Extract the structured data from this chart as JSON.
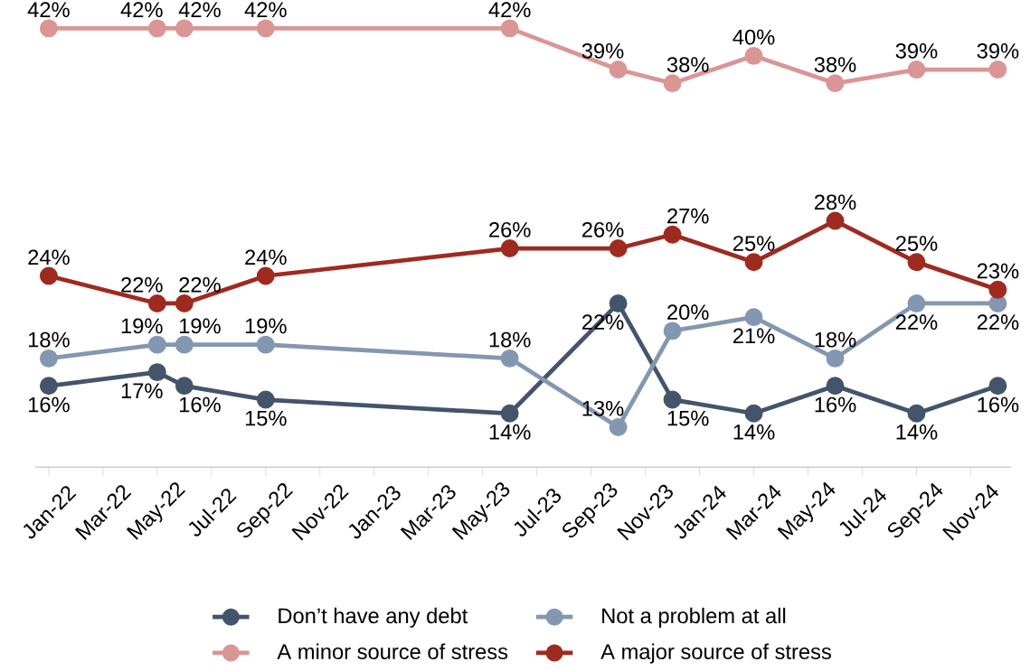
{
  "chart_data": {
    "type": "line",
    "x": [
      "2022-01",
      "2022-05",
      "2022-06",
      "2022-09",
      "2023-06",
      "2023-10",
      "2023-12",
      "2024-03",
      "2024-06",
      "2024-09",
      "2024-12"
    ],
    "xlim": [
      "2021-12-16",
      "2024-12-16"
    ],
    "xticks": [
      {
        "value": "2022-01",
        "label": "Jan-22"
      },
      {
        "value": "2022-03",
        "label": "Mar-22"
      },
      {
        "value": "2022-05",
        "label": "May-22"
      },
      {
        "value": "2022-07",
        "label": "Jul-22"
      },
      {
        "value": "2022-09",
        "label": "Sep-22"
      },
      {
        "value": "2022-11",
        "label": "Nov-22"
      },
      {
        "value": "2023-01",
        "label": "Jan-23"
      },
      {
        "value": "2023-03",
        "label": "Mar-23"
      },
      {
        "value": "2023-05",
        "label": "May-23"
      },
      {
        "value": "2023-07",
        "label": "Jul-23"
      },
      {
        "value": "2023-09",
        "label": "Sep-23"
      },
      {
        "value": "2023-11",
        "label": "Nov-23"
      },
      {
        "value": "2024-01",
        "label": "Jan-24"
      },
      {
        "value": "2024-03",
        "label": "Mar-24"
      },
      {
        "value": "2024-05",
        "label": "May-24"
      },
      {
        "value": "2024-07",
        "label": "Jul-24"
      },
      {
        "value": "2024-09",
        "label": "Sep-24"
      },
      {
        "value": "2024-11",
        "label": "Nov-24"
      }
    ],
    "tick_labels": "x",
    "marker": "circle",
    "line_style": "solid",
    "legend": "bottom",
    "series": [
      {
        "name": "Don’t have any debt",
        "color": "#44546a",
        "values": [
          16,
          17,
          16,
          15,
          14,
          22,
          15,
          14,
          16,
          14,
          16
        ],
        "value_labels": [
          "16%",
          "17%",
          "16%",
          "15%",
          "14%",
          "22%",
          "15%",
          "14%",
          "16%",
          "14%",
          "16%"
        ]
      },
      {
        "name": "Not a problem at all",
        "color": "#8497b0",
        "values": [
          18,
          19,
          19,
          19,
          18,
          13,
          20,
          21,
          18,
          22,
          22
        ],
        "value_labels": [
          "18%",
          "19%",
          "19%",
          "19%",
          "18%",
          "13%",
          "20%",
          "21%",
          "18%",
          "22%",
          "22%"
        ]
      },
      {
        "name": "A minor source of stress",
        "color": "#d99694",
        "values": [
          42,
          42,
          42,
          42,
          42,
          39,
          38,
          40,
          38,
          39,
          39
        ],
        "value_labels": [
          "42%",
          "42%",
          "42%",
          "42%",
          "42%",
          "39%",
          "38%",
          "40%",
          "38%",
          "39%",
          "39%"
        ]
      },
      {
        "name": "A major source of stress",
        "color": "#9e2a20",
        "values": [
          24,
          22,
          22,
          24,
          26,
          26,
          27,
          25,
          28,
          25,
          23
        ],
        "value_labels": [
          "24%",
          "22%",
          "22%",
          "24%",
          "26%",
          "26%",
          "27%",
          "25%",
          "28%",
          "25%",
          "23%"
        ]
      }
    ]
  }
}
